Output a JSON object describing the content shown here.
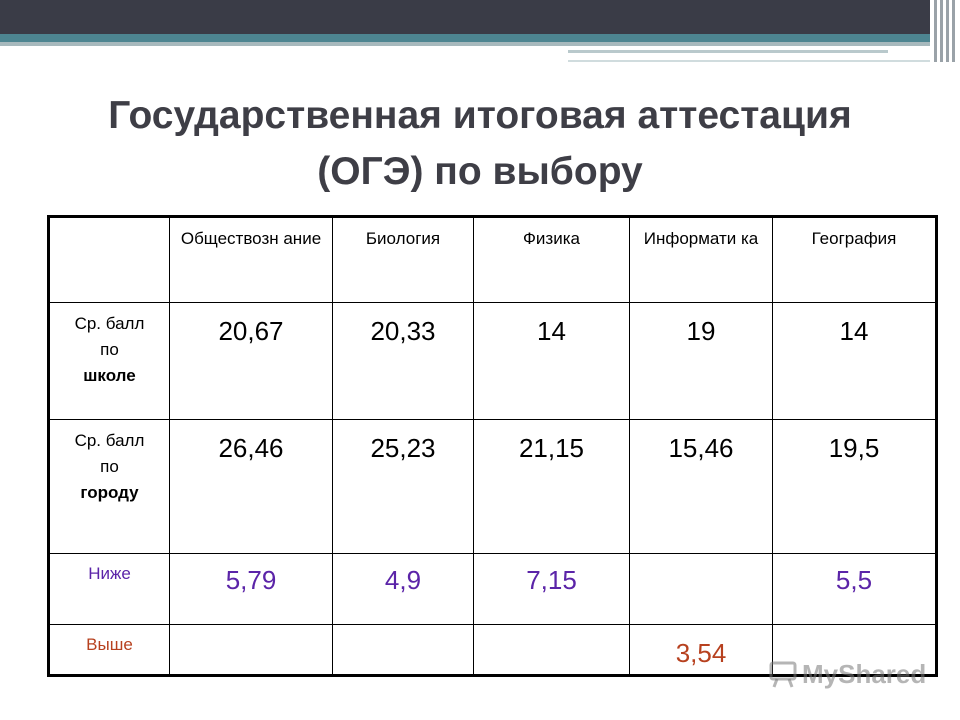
{
  "slide": {
    "title_line1": "Государственная итоговая аттестация",
    "title_line2": "(ОГЭ) по выбору"
  },
  "table": {
    "headers": [
      "",
      "Обществозн ание",
      "Биология",
      "Физика",
      "Информати ка",
      "География"
    ],
    "rows": [
      {
        "label": [
          "Ср. балл",
          "по",
          "школе"
        ],
        "values": [
          "20,67",
          "20,33",
          "14",
          "19",
          "14"
        ]
      },
      {
        "label": [
          "Ср. балл",
          "по",
          "городу"
        ],
        "values": [
          "26,46",
          "25,23",
          "21,15",
          "15,46",
          "19,5"
        ]
      },
      {
        "label": "Ниже",
        "values": [
          "5,79",
          "4,9",
          "7,15",
          "",
          "5,5"
        ]
      },
      {
        "label": "Выше",
        "values": [
          "",
          "",
          "",
          "3,54",
          ""
        ]
      }
    ]
  },
  "colors": {
    "header_bar": "#3a3c47",
    "teal_bar": "#4d8591",
    "title": "#3e3e46",
    "lower_label": "#5b24a8",
    "higher_label": "#b7411f"
  },
  "watermark": {
    "text": "MyShared",
    "icon": "presentation-board-icon"
  }
}
